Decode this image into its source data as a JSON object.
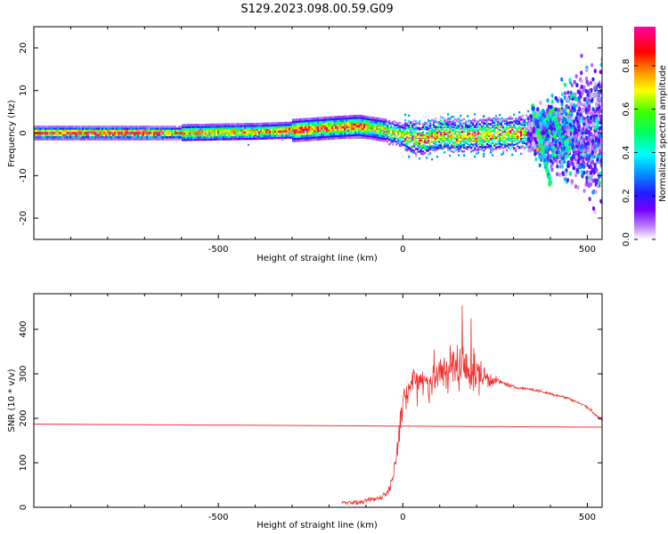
{
  "title": "S129.2023.098.00.59.G09",
  "chart_data": [
    {
      "type": "heatmap",
      "xlabel": "Height of straight line (km)",
      "ylabel": "Frequency (Hz)",
      "xlim": [
        -1000,
        540
      ],
      "ylim": [
        -25,
        25
      ],
      "xticks": [
        -500,
        0,
        500
      ],
      "yticks": [
        -20,
        -10,
        0,
        10,
        20
      ],
      "grid": false,
      "colorbar": {
        "label": "Normalized spectral amplitude",
        "range": [
          0,
          0.98
        ],
        "ticks": [
          "0.0",
          "0.2",
          "0.4",
          "0.6",
          "0.8"
        ],
        "tick_values": [
          0.0,
          0.2,
          0.4,
          0.6,
          0.8
        ],
        "colormap": "rainbow (white-violet-blue-cyan-green-yellow-red-magenta)"
      },
      "tone_center_track": [
        [
          -1000,
          0.0
        ],
        [
          -600,
          0.0
        ],
        [
          -400,
          0.3
        ],
        [
          -300,
          0.6
        ],
        [
          -200,
          1.2
        ],
        [
          -120,
          1.6
        ],
        [
          -60,
          0.8
        ],
        [
          0,
          -0.5
        ],
        [
          50,
          -1.5
        ],
        [
          100,
          -0.3
        ],
        [
          150,
          -0.8
        ],
        [
          200,
          -0.5
        ],
        [
          250,
          -0.3
        ],
        [
          300,
          0.0
        ],
        [
          340,
          0.2
        ]
      ],
      "noisy_region_x": [
        340,
        540
      ]
    },
    {
      "type": "line",
      "xlabel": "Height of straight line (km)",
      "ylabel": "SNR (10 * v/v)",
      "xlim": [
        -1000,
        540
      ],
      "ylim": [
        0,
        480
      ],
      "xticks": [
        -500,
        0,
        500
      ],
      "yticks": [
        0,
        100,
        200,
        300,
        400
      ],
      "grid": false,
      "series": [
        {
          "style": "noisy",
          "color": "#ee3333",
          "x": [
            -165,
            -150,
            -120,
            -100,
            -80,
            -60,
            -40,
            -30,
            -20,
            -15,
            -10,
            -5,
            0,
            10,
            20,
            30,
            50,
            70,
            100,
            120,
            150,
            170,
            200,
            230,
            250,
            270,
            300,
            350,
            400,
            450,
            500,
            520,
            540
          ],
          "y": [
            10,
            12,
            10,
            14,
            18,
            22,
            35,
            60,
            100,
            140,
            180,
            200,
            230,
            250,
            270,
            285,
            290,
            280,
            300,
            310,
            320,
            310,
            300,
            290,
            285,
            280,
            270,
            265,
            255,
            245,
            225,
            210,
            195
          ],
          "amp": [
            12,
            8,
            8,
            8,
            10,
            12,
            15,
            20,
            30,
            40,
            50,
            50,
            55,
            60,
            65,
            70,
            70,
            75,
            75,
            80,
            85,
            80,
            70,
            40,
            15,
            8,
            6,
            5,
            5,
            5,
            5,
            6,
            8
          ]
        },
        {
          "style": "line",
          "color": "#ee3333",
          "x": [
            -1000,
            540
          ],
          "y": [
            187,
            180
          ]
        }
      ]
    }
  ]
}
